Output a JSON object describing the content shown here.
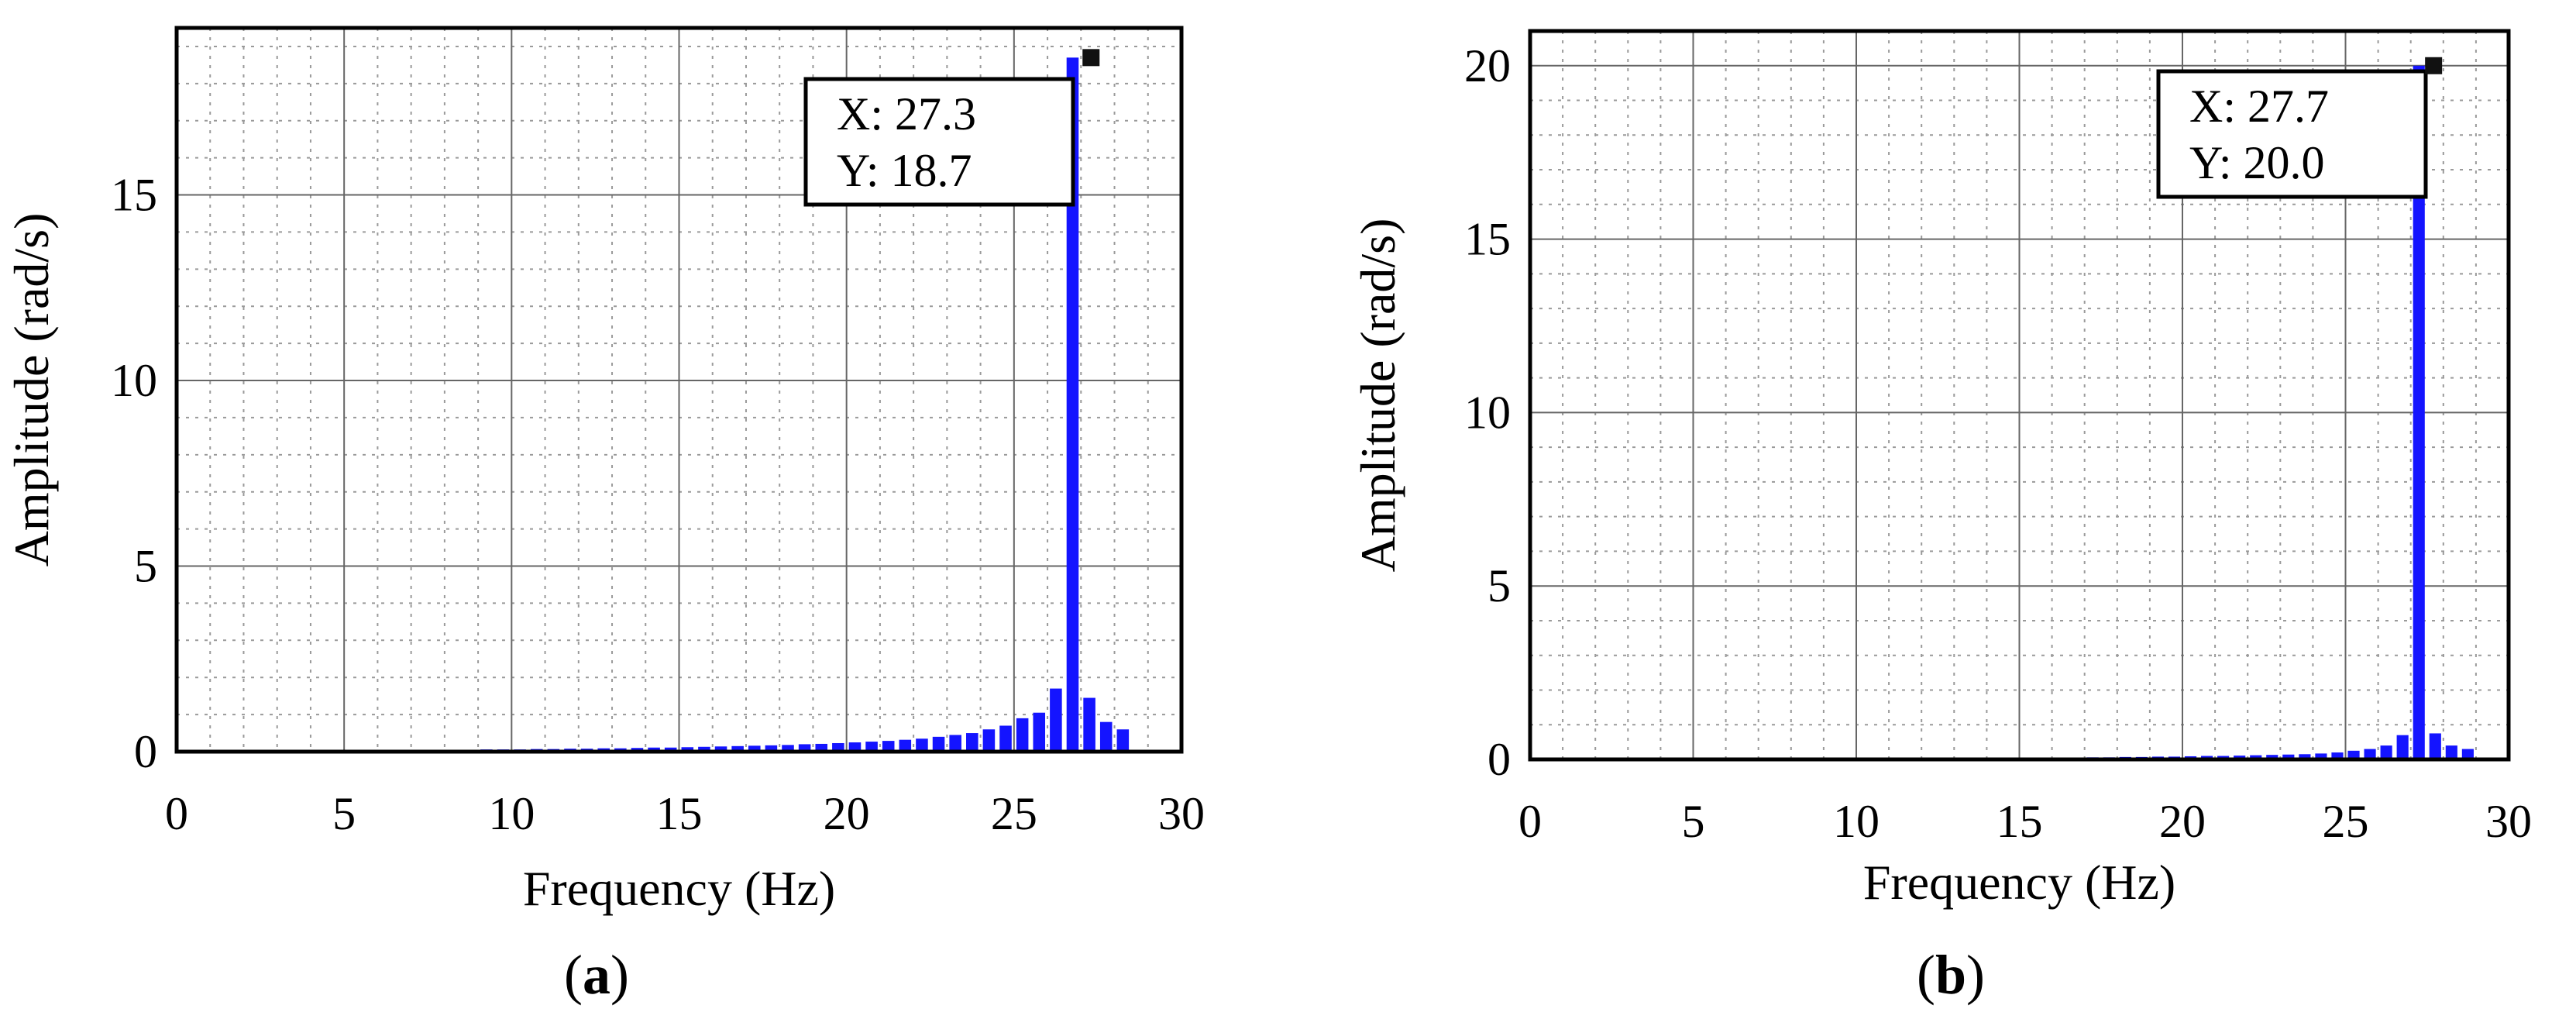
{
  "chart_data": [
    {
      "type": "bar",
      "panel_label": "a",
      "xlabel": "Frequency (Hz)",
      "ylabel": "Amplitude (rad/s)",
      "xlim": [
        0,
        30
      ],
      "ylim": [
        0,
        19.5
      ],
      "x_ticks": [
        "0",
        "5",
        "10",
        "15",
        "20",
        "25",
        "30"
      ],
      "y_ticks": [
        "0",
        "5",
        "10",
        "15"
      ],
      "grid": "major solid, minor dotted",
      "bar_color": "#1414ff",
      "x": [
        0.0,
        0.5,
        1.0,
        1.5,
        2.0,
        2.5,
        3.0,
        3.5,
        4.0,
        4.5,
        5.0,
        5.5,
        6.0,
        6.5,
        7.0,
        7.5,
        8.0,
        8.5,
        9.0,
        9.5,
        10.0,
        10.5,
        11.0,
        11.5,
        12.0,
        12.5,
        13.0,
        13.5,
        14.0,
        14.5,
        15.0,
        15.5,
        16.0,
        16.5,
        17.0,
        17.5,
        18.0,
        18.5,
        19.0,
        19.5,
        20.0,
        20.5,
        21.0,
        21.5,
        22.0,
        22.5,
        23.0,
        23.5,
        24.0,
        24.5,
        25.0,
        25.5,
        26.0,
        26.5,
        27.0,
        27.5,
        28.0,
        28.5,
        29.0,
        29.5
      ],
      "values": [
        0.02,
        0.02,
        0.02,
        0.02,
        0.02,
        0.03,
        0.03,
        0.03,
        0.03,
        0.03,
        0.03,
        0.04,
        0.04,
        0.04,
        0.04,
        0.05,
        0.05,
        0.05,
        0.06,
        0.06,
        0.06,
        0.07,
        0.07,
        0.08,
        0.08,
        0.09,
        0.09,
        0.1,
        0.11,
        0.11,
        0.12,
        0.13,
        0.14,
        0.15,
        0.16,
        0.17,
        0.18,
        0.2,
        0.21,
        0.23,
        0.25,
        0.27,
        0.29,
        0.32,
        0.35,
        0.4,
        0.45,
        0.5,
        0.6,
        0.7,
        0.9,
        1.05,
        1.7,
        18.7,
        1.45,
        0.8,
        0.6,
        0.0,
        0.0,
        0.0
      ],
      "cursor": {
        "x_label": "X:",
        "x_value": "27.3",
        "y_label": "Y:",
        "y_value": "18.7"
      }
    },
    {
      "type": "bar",
      "panel_label": "b",
      "xlabel": "Frequency (Hz)",
      "ylabel": "Amplitude (rad/s)",
      "xlim": [
        0,
        30
      ],
      "ylim": [
        0,
        21
      ],
      "x_ticks": [
        "0",
        "5",
        "10",
        "15",
        "20",
        "25",
        "30"
      ],
      "y_ticks": [
        "0",
        "5",
        "10",
        "15",
        "20"
      ],
      "grid": "major solid, minor dotted",
      "bar_color": "#1414ff",
      "x": [
        0.0,
        0.5,
        1.0,
        1.5,
        2.0,
        2.5,
        3.0,
        3.5,
        4.0,
        4.5,
        5.0,
        5.5,
        6.0,
        6.5,
        7.0,
        7.5,
        8.0,
        8.5,
        9.0,
        9.5,
        10.0,
        10.5,
        11.0,
        11.5,
        12.0,
        12.5,
        13.0,
        13.5,
        14.0,
        14.5,
        15.0,
        15.5,
        16.0,
        16.5,
        17.0,
        17.5,
        18.0,
        18.5,
        19.0,
        19.5,
        20.0,
        20.5,
        21.0,
        21.5,
        22.0,
        22.5,
        23.0,
        23.5,
        24.0,
        24.5,
        25.0,
        25.5,
        26.0,
        26.5,
        27.0,
        27.5,
        28.0,
        28.5,
        29.0,
        29.5
      ],
      "values": [
        0.01,
        0.01,
        0.01,
        0.01,
        0.01,
        0.01,
        0.01,
        0.01,
        0.01,
        0.01,
        0.01,
        0.01,
        0.01,
        0.01,
        0.01,
        0.01,
        0.01,
        0.02,
        0.02,
        0.02,
        0.02,
        0.02,
        0.02,
        0.03,
        0.03,
        0.03,
        0.03,
        0.03,
        0.04,
        0.04,
        0.04,
        0.05,
        0.05,
        0.05,
        0.06,
        0.06,
        0.07,
        0.07,
        0.08,
        0.08,
        0.09,
        0.1,
        0.1,
        0.11,
        0.12,
        0.13,
        0.14,
        0.15,
        0.17,
        0.2,
        0.25,
        0.3,
        0.4,
        0.7,
        20.0,
        0.75,
        0.4,
        0.3,
        0.0,
        0.0
      ],
      "cursor": {
        "x_label": "X:",
        "x_value": "27.7",
        "y_label": "Y:",
        "y_value": "20.0"
      }
    }
  ]
}
